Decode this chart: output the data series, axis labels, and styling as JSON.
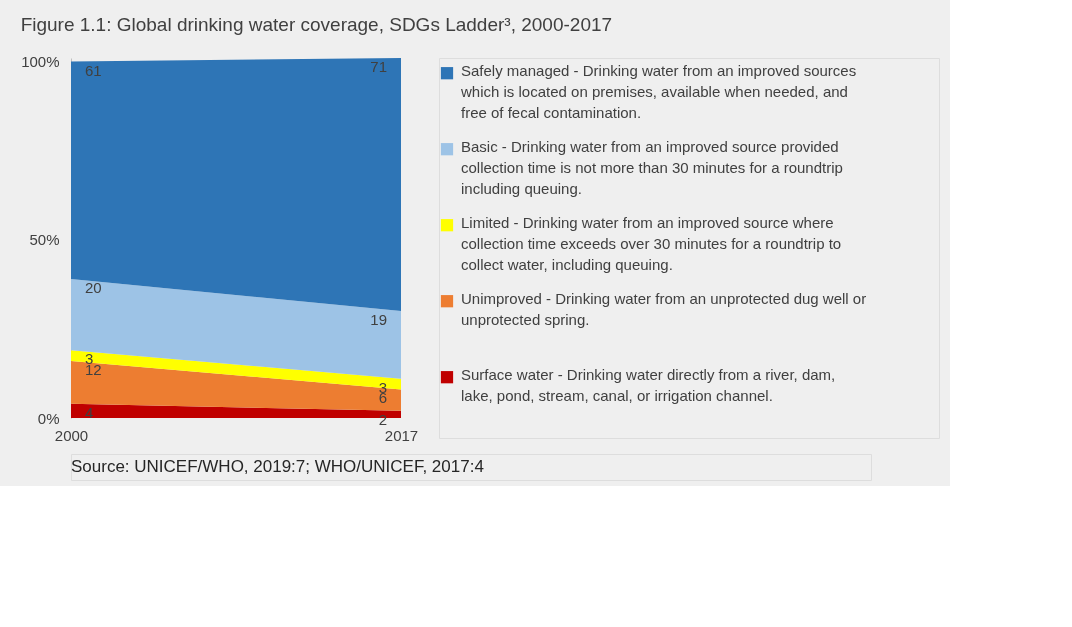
{
  "chart_data": {
    "type": "area",
    "stacked": true,
    "title": "Figure 1.1: Global drinking water coverage, SDGs Ladder³, 2000-2017",
    "x": [
      2000,
      2017
    ],
    "xlim": [
      2000,
      2017
    ],
    "xticks": [
      2000,
      2017
    ],
    "series": [
      {
        "name": "Surface water - Drinking water directly from a river, dam, lake, pond, stream, canal, or irrigation channel.",
        "color": "#c00000",
        "values": [
          4,
          2
        ]
      },
      {
        "name": "Unimproved - Drinking water from an unprotected dug well or unprotected spring.",
        "color": "#ed7d31",
        "values": [
          12,
          6
        ]
      },
      {
        "name": "Limited - Drinking water from an improved source where collection time exceeds over 30 minutes for a roundtrip to collect water, including queuing.",
        "color": "#ffff00",
        "values": [
          3,
          3
        ]
      },
      {
        "name": "Basic - Drinking water from an improved source provided collection time is not more than 30 minutes for a roundtrip including queuing.",
        "color": "#9dc3e6",
        "values": [
          20,
          19
        ]
      },
      {
        "name": "Safely managed - Drinking water from an improved sources which is located on premises, available when needed, and free of fecal contamination.",
        "color": "#2e75b6",
        "values": [
          61,
          71
        ]
      }
    ],
    "ylim": [
      0,
      101
    ],
    "yticks": [
      {
        "value": 0,
        "label": "0%"
      },
      {
        "value": 50,
        "label": "50%"
      },
      {
        "value": 100,
        "label": "100%"
      }
    ],
    "legend": "right",
    "data_labels": true,
    "annotations": [
      "Source: UNICEF/WHO, 2019:7; WHO/UNICEF, 2017:4"
    ]
  }
}
